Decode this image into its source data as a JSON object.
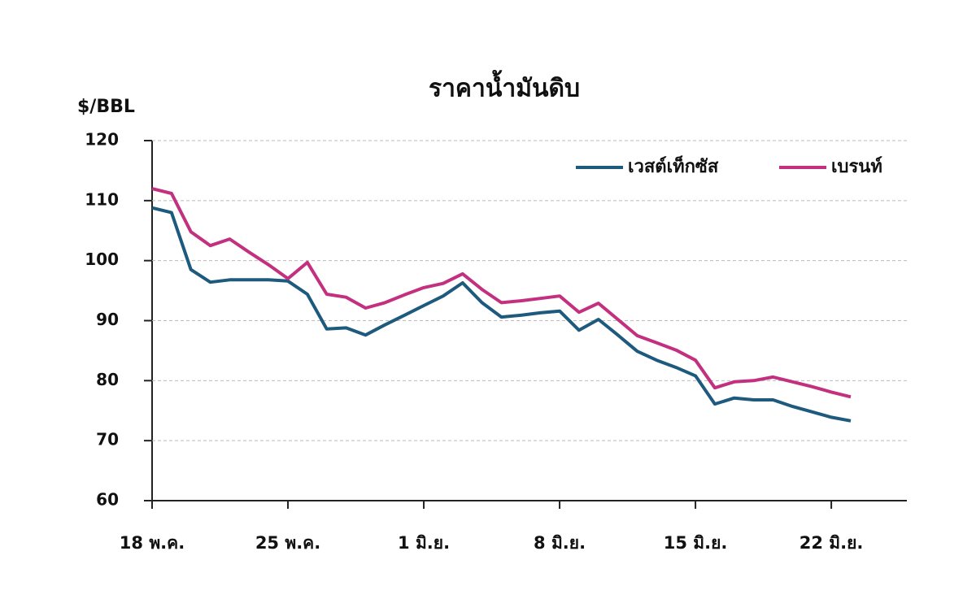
{
  "chart_data": {
    "type": "line",
    "title": "ราคาน้ำมันดิบ",
    "y_label": "$/BBL",
    "categories": [
      "18 พ.ค.",
      null,
      null,
      null,
      null,
      null,
      null,
      "25 พ.ค.",
      null,
      null,
      null,
      null,
      null,
      null,
      "1 มิ.ย.",
      null,
      null,
      null,
      null,
      null,
      null,
      "8 มิ.ย.",
      null,
      null,
      null,
      null,
      null,
      null,
      "15 มิ.ย.",
      null,
      null,
      null,
      null,
      null,
      null,
      "22 มิ.ย.",
      null
    ],
    "series": [
      {
        "name": "เวสต์เท็กซัส",
        "color": "#1d5a7e",
        "values": [
          108.8,
          108,
          98.5,
          96.4,
          96.8,
          96.8,
          96.8,
          96.6,
          94.4,
          88.6,
          88.8,
          87.6,
          89.3,
          90.9,
          92.5,
          94.1,
          96.3,
          93.0,
          90.6,
          90.9,
          91.3,
          91.6,
          88.4,
          90.2,
          87.6,
          84.9,
          83.4,
          82.2,
          80.8,
          76.1,
          77.1,
          76.8,
          76.8,
          75.7,
          74.8,
          73.9,
          73.3
        ]
      },
      {
        "name": "เบรนท์",
        "color": "#c2307f",
        "values": [
          112.0,
          111.2,
          104.8,
          102.5,
          103.6,
          101.4,
          99.3,
          97.0,
          99.7,
          94.4,
          93.9,
          92.1,
          93.0,
          94.3,
          95.5,
          96.2,
          97.8,
          95.2,
          93.0,
          93.3,
          93.7,
          94.1,
          91.4,
          92.9,
          90.2,
          87.5,
          86.3,
          85.1,
          83.4,
          78.8,
          79.8,
          80.0,
          80.6,
          79.8,
          79.0,
          78.1,
          77.3
        ]
      }
    ],
    "ylim": [
      60,
      120
    ],
    "yticks": [
      60,
      70,
      80,
      90,
      100,
      110,
      120
    ],
    "grid": true,
    "legend": "top-right"
  }
}
